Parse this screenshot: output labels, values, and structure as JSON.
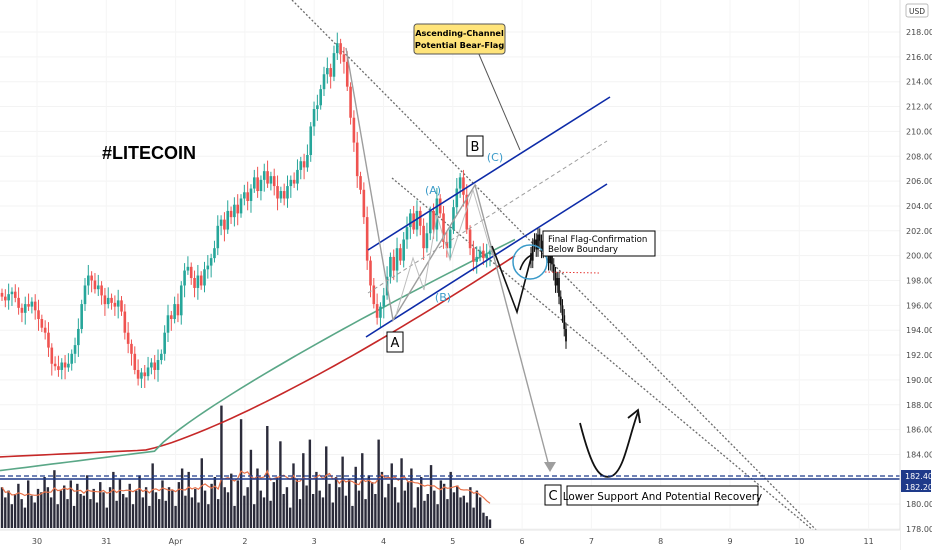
{
  "chart_data": {
    "type": "candlestick",
    "symbol_label": "#LITECOIN",
    "currency_badge": "USD",
    "y_axis_ticks": [
      "218.00",
      "216.00",
      "214.00",
      "212.00",
      "210.00",
      "208.00",
      "206.00",
      "204.00",
      "202.00",
      "200.00",
      "198.00",
      "196.00",
      "194.00",
      "192.00",
      "190.00",
      "188.00",
      "186.00",
      "184.00",
      "182.40",
      "182.20",
      "180.00",
      "178.00"
    ],
    "y_range": [
      177.5,
      218.9
    ],
    "price_levels": [
      {
        "label": "182.40",
        "value": 182.4,
        "color": "#1e3a8a",
        "style": "dashed"
      },
      {
        "label": "182.20",
        "value": 182.2,
        "color": "#1e3a8a",
        "style": "solid"
      }
    ],
    "x_axis_ticks": [
      {
        "label": "30",
        "day": 0
      },
      {
        "label": "31",
        "day": 1
      },
      {
        "label": "Apr",
        "day": 2
      },
      {
        "label": "2",
        "day": 3
      },
      {
        "label": "3",
        "day": 4
      },
      {
        "label": "4",
        "day": 5
      },
      {
        "label": "5",
        "day": 6
      },
      {
        "label": "6",
        "day": 7
      },
      {
        "label": "7",
        "day": 8
      },
      {
        "label": "8",
        "day": 9
      },
      {
        "label": "9",
        "day": 10
      },
      {
        "label": "10",
        "day": 11
      },
      {
        "label": "11",
        "day": 12
      }
    ],
    "candles_close": [
      196.7,
      196.4,
      196.9,
      197.1,
      196.6,
      195.8,
      195.4,
      196.1,
      195.9,
      196.3,
      195.6,
      194.9,
      194.2,
      193.8,
      192.6,
      191.3,
      191.1,
      190.8,
      191.4,
      191.0,
      191.3,
      192.1,
      192.8,
      194.1,
      196.1,
      197.6,
      198.4,
      198.0,
      197.3,
      197.6,
      196.8,
      196.1,
      196.6,
      196.2,
      195.9,
      196.4,
      195.5,
      193.8,
      192.9,
      192.1,
      190.8,
      190.1,
      190.6,
      190.3,
      191.0,
      191.4,
      190.8,
      191.6,
      192.1,
      193.8,
      195.2,
      194.9,
      196.1,
      195.2,
      197.6,
      198.8,
      199.1,
      198.2,
      197.4,
      198.4,
      197.6,
      198.9,
      199.2,
      199.8,
      200.6,
      202.4,
      202.9,
      202.1,
      203.6,
      203.1,
      204.1,
      203.4,
      204.6,
      205.1,
      204.4,
      205.4,
      206.3,
      205.2,
      206.1,
      206.8,
      205.8,
      206.4,
      205.6,
      204.6,
      205.2,
      204.6,
      205.6,
      206.1,
      205.8,
      206.9,
      207.6,
      207.1,
      208.1,
      210.4,
      211.8,
      212.1,
      213.4,
      214.6,
      215.1,
      214.4,
      216.3,
      217.1,
      216.2,
      215.6,
      213.6,
      211.1,
      209.1,
      206.4,
      205.3,
      203.1,
      199.6,
      197.6,
      196.1,
      195.0,
      195.9,
      196.8,
      198.3,
      199.9,
      198.8,
      200.6,
      199.6,
      201.3,
      202.3,
      203.4,
      202.1,
      203.6,
      202.4,
      200.6,
      201.8,
      203.6,
      202.1,
      204.6,
      203.4,
      201.1,
      200.6,
      202.1,
      203.9,
      205.4,
      206.3,
      204.9,
      202.1,
      200.6,
      199.5,
      199.9,
      200.4,
      199.8,
      200.1,
      200.4
    ],
    "post_candles_close": [
      199.6,
      200.9,
      201.3,
      200.5,
      201.7,
      201.2,
      200.4,
      200.8,
      201.1,
      200.7,
      199.4,
      200.1,
      199.3,
      198.6,
      197.6,
      198.2,
      196.7,
      196.0,
      195.2,
      194.1,
      193.1
    ],
    "moving_averages": [
      {
        "color": "#c62828",
        "start": 183.8,
        "end": 200.0
      },
      {
        "color": "#5aa787",
        "start": 182.7,
        "end": 201.3
      }
    ],
    "volume_bars": [
      24,
      18,
      22,
      14,
      20,
      26,
      17,
      12,
      28,
      19,
      15,
      23,
      21,
      30,
      24,
      18,
      34,
      14,
      22,
      25,
      17,
      28,
      13,
      26,
      20,
      19,
      31,
      17,
      23,
      15,
      27,
      21,
      12,
      24,
      33,
      16,
      29,
      20,
      18,
      26,
      14,
      22,
      31,
      18,
      24,
      13,
      38,
      21,
      17,
      28,
      16,
      24,
      22,
      13,
      27,
      35,
      19,
      33,
      18,
      23,
      15,
      41,
      22,
      14,
      26,
      30,
      17,
      72,
      24,
      21,
      32,
      13,
      28,
      64,
      19,
      24,
      46,
      14,
      35,
      22,
      18,
      60,
      16,
      27,
      30,
      51,
      20,
      24,
      12,
      38,
      29,
      17,
      44,
      25,
      52,
      20,
      33,
      22,
      18,
      48,
      26,
      15,
      30,
      24,
      42,
      19,
      29,
      13,
      36,
      22,
      44,
      17,
      31,
      27,
      20,
      52,
      33,
      18,
      26,
      38,
      24,
      15,
      41,
      22,
      27,
      35,
      12,
      24,
      30,
      16,
      20,
      37,
      22,
      14,
      28,
      26,
      17,
      33,
      21,
      25,
      18,
      19,
      15,
      24,
      12,
      22,
      18,
      9,
      7,
      5
    ],
    "volume_ma_color": "#e8724a",
    "annotations": {
      "callout_title": "Ascending-Channel\nPotential Bear-Flag",
      "wave_A": "A",
      "wave_B": "B",
      "wave_C": "C",
      "wave_sub_A": "(A)",
      "wave_sub_B": "(B)",
      "wave_sub_C": "(C)",
      "final_flag_note": "Final Flag-Confirmation\nBelow Boundary",
      "support_note": "Lower Support And Potential Recovery"
    }
  },
  "colors": {
    "up": "#26a69a",
    "down": "#ef5350",
    "channel": "#0d2ba8",
    "projection": "#9e9e9e",
    "callout_bg": "#ffe47a"
  }
}
